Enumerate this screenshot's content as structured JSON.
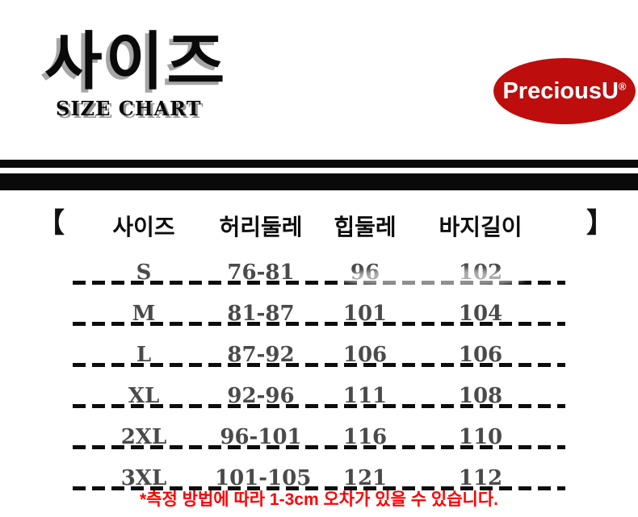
{
  "title": {
    "korean": "사이즈",
    "english": "SIZE CHART"
  },
  "logo": {
    "text": "PreciousU",
    "registered_mark": "®",
    "bg_color": "#bd0d0d",
    "text_color": "#ffffff"
  },
  "colors": {
    "divider_bar": "#0a0a0a",
    "table_value_gray": "#4a4a4a",
    "footnote_red": "#ff0000"
  },
  "table": {
    "bracket_left": "【",
    "bracket_right": "】"
  },
  "chart_data": {
    "type": "table",
    "title": "사이즈 SIZE CHART",
    "columns": [
      "사이즈",
      "허리둘레",
      "힙둘레",
      "바지길이"
    ],
    "rows": [
      [
        "S",
        "76-81",
        "96",
        "102"
      ],
      [
        "M",
        "81-87",
        "101",
        "104"
      ],
      [
        "L",
        "87-92",
        "106",
        "106"
      ],
      [
        "XL",
        "92-96",
        "111",
        "108"
      ],
      [
        "2XL",
        "96-101",
        "116",
        "110"
      ],
      [
        "3XL",
        "101-105",
        "121",
        "112"
      ]
    ]
  },
  "footnote": {
    "text": "*측정 방법에 따라 1-3cm 오차가 있을 수 있습니다."
  }
}
